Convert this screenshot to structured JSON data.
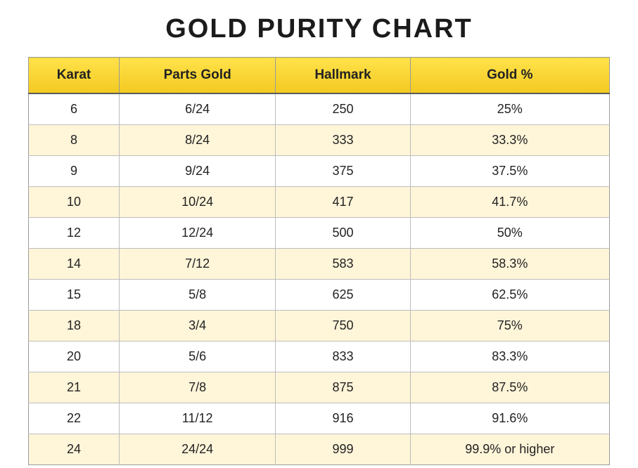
{
  "title": "GOLD PURITY CHART",
  "table": {
    "columns": [
      "Karat",
      "Parts Gold",
      "Hallmark",
      "Gold %"
    ],
    "rows": [
      [
        "6",
        "6/24",
        "250",
        "25%"
      ],
      [
        "8",
        "8/24",
        "333",
        "33.3%"
      ],
      [
        "9",
        "9/24",
        "375",
        "37.5%"
      ],
      [
        "10",
        "10/24",
        "417",
        "41.7%"
      ],
      [
        "12",
        "12/24",
        "500",
        "50%"
      ],
      [
        "14",
        "7/12",
        "583",
        "58.3%"
      ],
      [
        "15",
        "5/8",
        "625",
        "62.5%"
      ],
      [
        "18",
        "3/4",
        "750",
        "75%"
      ],
      [
        "20",
        "5/6",
        "833",
        "83.3%"
      ],
      [
        "21",
        "7/8",
        "875",
        "87.5%"
      ],
      [
        "22",
        "11/12",
        "916",
        "91.6%"
      ],
      [
        "24",
        "24/24",
        "999",
        "99.9% or higher"
      ]
    ],
    "header_gradient_top": "#ffe24a",
    "header_gradient_bottom": "#f3c921",
    "header_border_bottom": "#5a5a5a",
    "row_bg_odd": "#ffffff",
    "row_bg_even": "#fff5d9",
    "cell_border_color": "#bdbdbd",
    "outer_border_color": "#9a9a9a",
    "title_fontsize": 38,
    "header_fontsize": 19,
    "cell_fontsize": 18,
    "text_color": "#222222"
  }
}
